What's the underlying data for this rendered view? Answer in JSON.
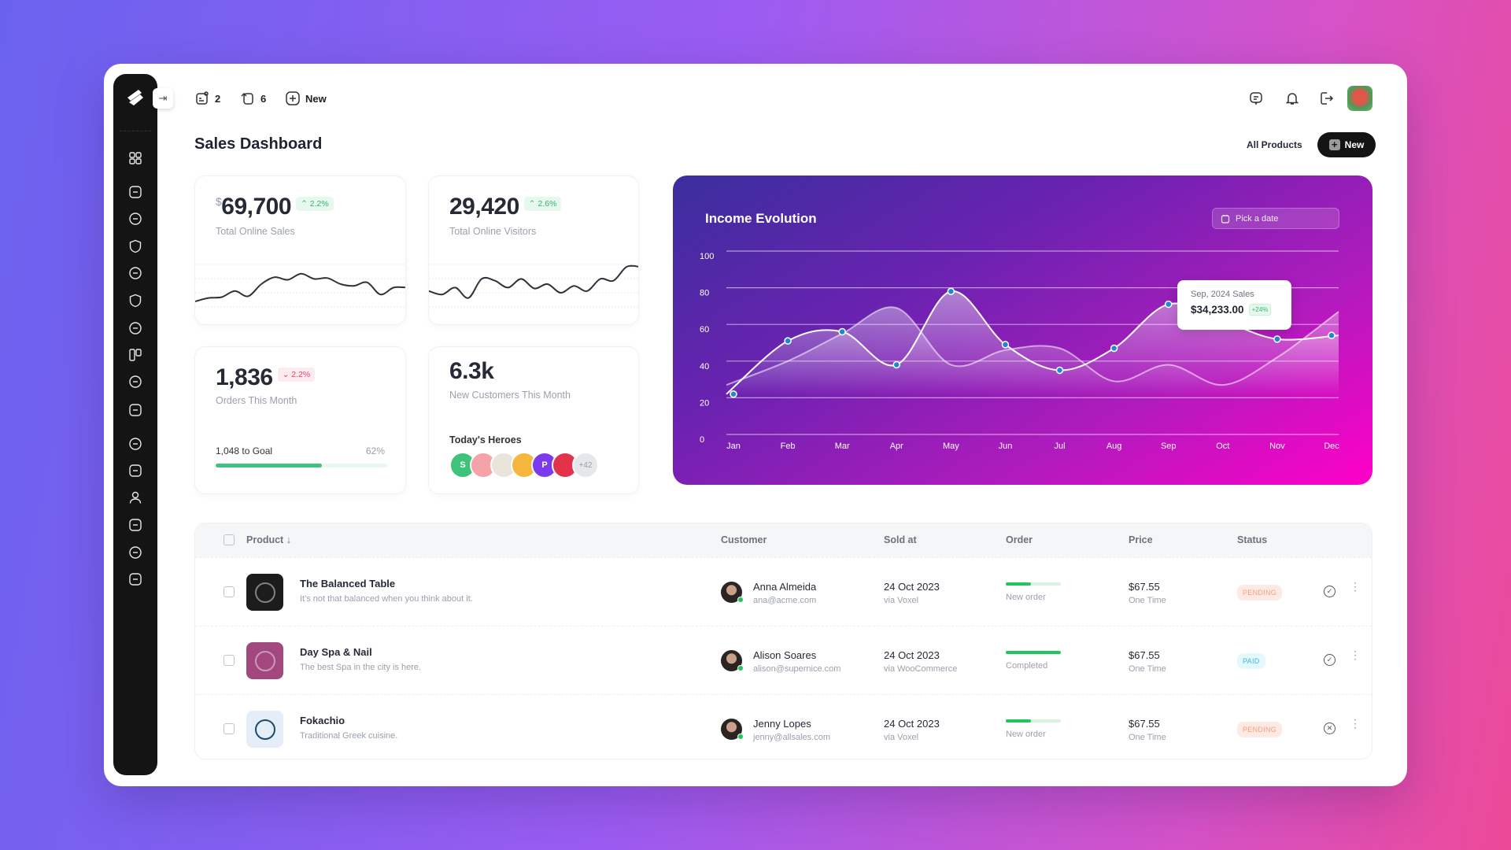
{
  "colors": {
    "accent": "#22c55e",
    "sidebar": "#141414",
    "pending": "#f6a07a",
    "paid": "#3bb8dc"
  },
  "topbar": {
    "tasks_count": "2",
    "replies_count": "6",
    "new_label": "New",
    "icons": [
      "message-icon",
      "bell-icon",
      "logout-icon",
      "user-avatar"
    ]
  },
  "sidebar": {
    "icons": [
      "dashboard-icon",
      "user-circle-icon",
      "settings-icon",
      "shield-check-icon",
      "id-card-icon",
      "shield-icon",
      "sticky-note-icon",
      "kanban-icon",
      "paypal-icon",
      "help-icon",
      "calendar-icon",
      "minus-square-icon",
      "user-icon",
      "chat-alert-icon",
      "users-icon",
      "contact-book-icon"
    ]
  },
  "page": {
    "title": "Sales Dashboard",
    "filter_label": "All Products",
    "new_label": "New"
  },
  "cards": {
    "sales": {
      "currency": "$",
      "value": "69,700",
      "change": "2.2%",
      "label": "Total Online Sales",
      "sparkline": [
        10,
        14,
        15,
        22,
        16,
        30,
        38,
        35,
        42,
        36,
        37,
        30,
        28,
        32,
        18,
        26,
        26
      ]
    },
    "visitors": {
      "value": "29,420",
      "change": "2.6%",
      "label": "Total Online Visitors",
      "sparkline": [
        22,
        18,
        26,
        14,
        36,
        34,
        26,
        36,
        25,
        30,
        20,
        28,
        22,
        36,
        34,
        50,
        50
      ]
    },
    "orders": {
      "value": "1,836",
      "change": "2.2%",
      "label": "Orders This Month",
      "goal_label": "1,048 to Goal",
      "goal_percent": "62%",
      "goal_fraction": 0.62
    },
    "customers": {
      "value": "6.3k",
      "label": "New Customers This Month",
      "heroes_label": "Today's Heroes",
      "heroes": [
        {
          "initial": "S",
          "color": "#3ec47a"
        },
        {
          "initial": "",
          "color": "#f4a3a8"
        },
        {
          "initial": "",
          "color": "#e9e4dc"
        },
        {
          "initial": "",
          "color": "#f6b73c"
        },
        {
          "initial": "P",
          "color": "#7c3aed"
        },
        {
          "initial": "",
          "color": "#e2334a"
        }
      ],
      "more": "+42"
    }
  },
  "chart_data": {
    "type": "area",
    "title": "Income Evolution",
    "date_picker_placeholder": "Pick a date",
    "categories": [
      "Jan",
      "Feb",
      "Mar",
      "Apr",
      "May",
      "Jun",
      "Jul",
      "Aug",
      "Sep",
      "Oct",
      "Nov",
      "Dec"
    ],
    "ylim": [
      0,
      100
    ],
    "yticks": [
      0,
      20,
      40,
      60,
      80,
      100
    ],
    "grid": true,
    "series": [
      {
        "values": [
          22,
          51,
          56,
          38,
          78,
          49,
          35,
          47,
          71,
          62,
          52,
          54
        ],
        "markers": true
      },
      {
        "values": [
          27,
          40,
          55,
          69,
          38,
          46,
          47,
          29,
          38,
          27,
          42,
          67
        ],
        "markers": false
      }
    ],
    "tooltip": {
      "title": "Sep, 2024 Sales",
      "value": "$34,233.00",
      "change": "+24%",
      "category": "Sep"
    }
  },
  "table": {
    "headers": [
      "Product",
      "Customer",
      "Sold at",
      "Order",
      "Price",
      "Status"
    ],
    "rows": [
      {
        "product": "The Balanced Table",
        "desc": "It's not that balanced when you think about it.",
        "thumb": "#1c1c1c",
        "customer": "Anna Almeida",
        "email": "ana@acme.com",
        "date": "24 Oct 2023",
        "via": "via Voxel",
        "order_progress": 0.45,
        "order": "New order",
        "price": "$67.55",
        "price_type": "One Time",
        "status": "PENDING",
        "action": "check-circle-icon"
      },
      {
        "product": "Day Spa & Nail",
        "desc": "The best Spa in the city is here.",
        "thumb": "#a3487f",
        "customer": "Alison Soares",
        "email": "alison@supernice.com",
        "date": "24 Oct 2023",
        "via": "via WooCommerce",
        "order_progress": 1,
        "order": "Completed",
        "price": "$67.55",
        "price_type": "One Time",
        "status": "PAID",
        "action": "check-circle-icon"
      },
      {
        "product": "Fokachio",
        "desc": "Traditional Greek cuisine.",
        "thumb": "#e5eef7",
        "customer": "Jenny Lopes",
        "email": "jenny@allsales.com",
        "date": "24 Oct 2023",
        "via": "via Voxel",
        "order_progress": 0.45,
        "order": "New order",
        "price": "$67.55",
        "price_type": "One Time",
        "status": "PENDING",
        "action": "star-off-icon"
      }
    ]
  }
}
